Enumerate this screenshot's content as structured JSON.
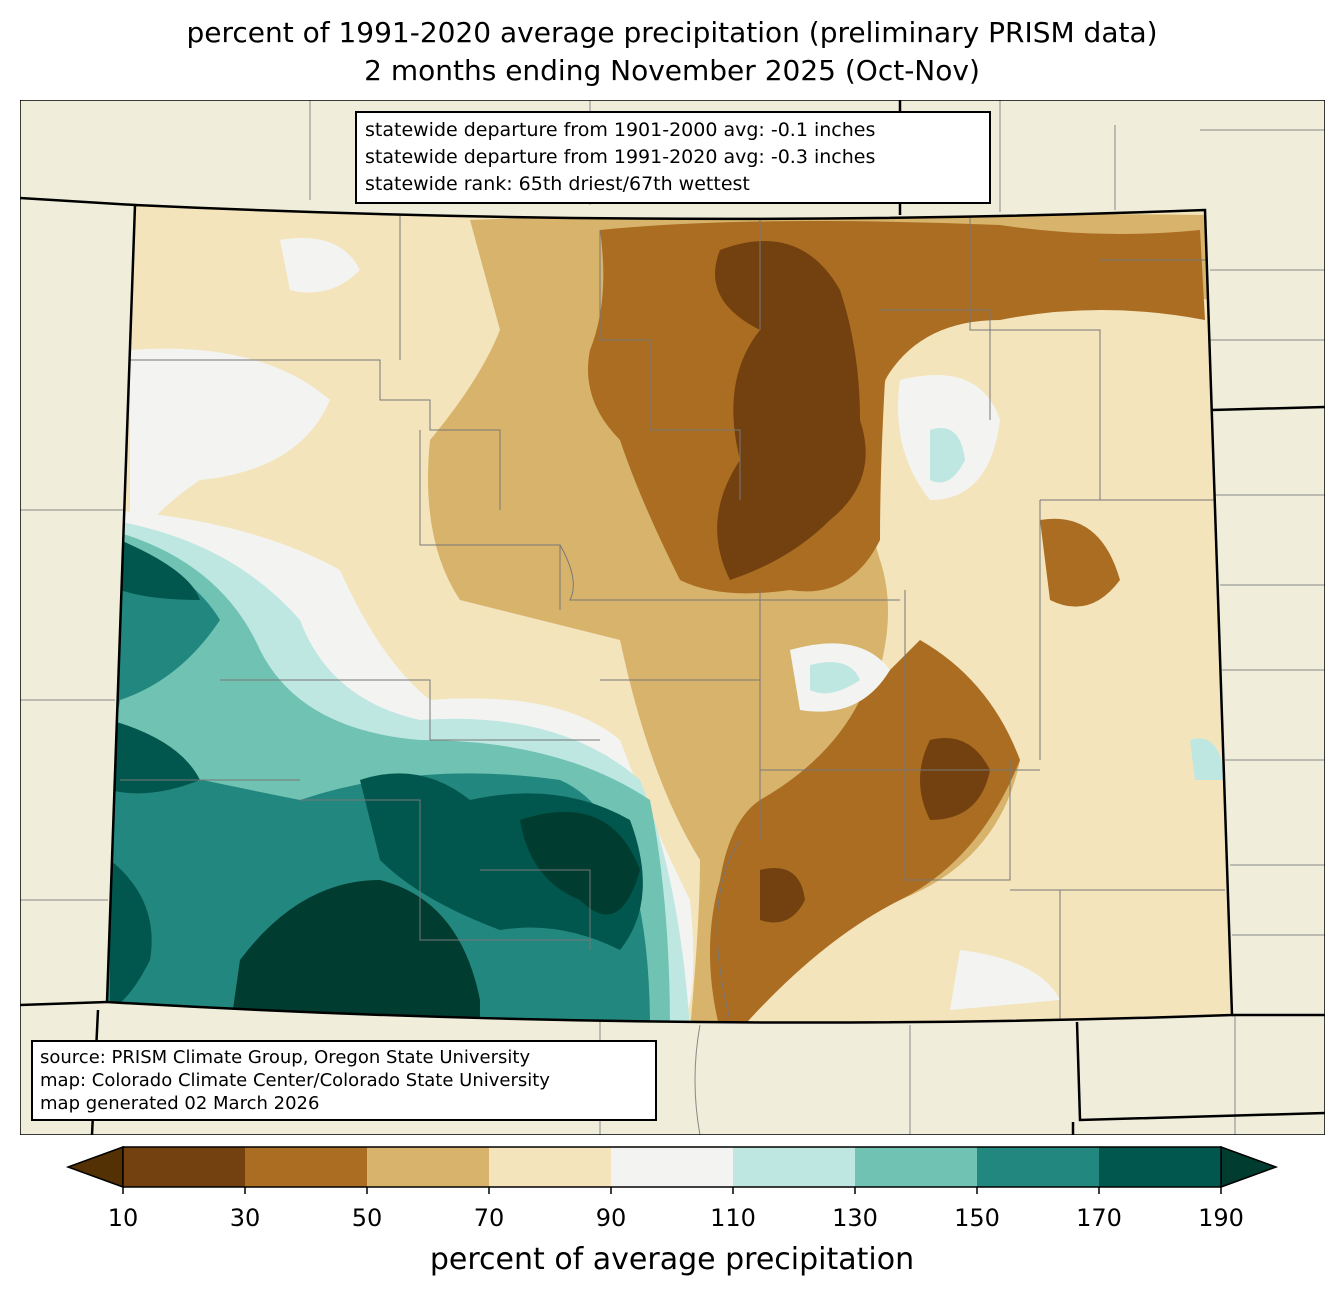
{
  "title": {
    "line1": "percent of 1991-2020 average precipitation (preliminary PRISM data)",
    "line2": "2 months ending November 2025 (Oct-Nov)"
  },
  "stats": {
    "line1": "statewide departure from 1901-2000 avg: -0.1 inches",
    "line2": "statewide departure from 1991-2020 avg: -0.3 inches",
    "line3": "statewide rank: 65th driest/67th wettest"
  },
  "source": {
    "line1": "source: PRISM Climate Group, Oregon State University",
    "line2": "map: Colorado Climate Center/Colorado State University",
    "line3": "map generated 02 March 2026"
  },
  "colorbar": {
    "label": "percent of average precipitation",
    "ticks": [
      "10",
      "30",
      "50",
      "70",
      "90",
      "110",
      "130",
      "150",
      "170",
      "190"
    ],
    "colors": [
      "#734110",
      "#aa6d22",
      "#d8b36c",
      "#f3e4bc",
      "#f3f4f2",
      "#bee7e1",
      "#70c2b3",
      "#22877f",
      "#01574d"
    ],
    "under": "#543005",
    "over": "#003c30"
  },
  "map_colors": {
    "background": "#f0eedb"
  }
}
